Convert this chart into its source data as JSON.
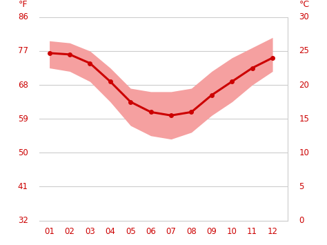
{
  "months": [
    1,
    2,
    3,
    4,
    5,
    6,
    7,
    8,
    9,
    10,
    11,
    12
  ],
  "month_labels": [
    "01",
    "02",
    "03",
    "04",
    "05",
    "06",
    "07",
    "08",
    "09",
    "10",
    "11",
    "12"
  ],
  "avg_temp": [
    24.7,
    24.5,
    23.2,
    20.5,
    17.5,
    16.0,
    15.5,
    16.0,
    18.5,
    20.5,
    22.5,
    24.0
  ],
  "temp_max": [
    26.5,
    26.2,
    25.0,
    22.5,
    19.5,
    19.0,
    19.0,
    19.5,
    22.0,
    24.0,
    25.5,
    27.0
  ],
  "temp_min": [
    22.5,
    22.0,
    20.5,
    17.5,
    14.0,
    12.5,
    12.0,
    13.0,
    15.5,
    17.5,
    20.0,
    22.0
  ],
  "line_color": "#cc0000",
  "band_color": "#f5a0a0",
  "axis_color": "#cc0000",
  "grid_color": "#cccccc",
  "bg_color": "#ffffff",
  "ylim_c": [
    0,
    30
  ],
  "yticks_c": [
    0,
    5,
    10,
    15,
    20,
    25,
    30
  ],
  "yticks_f": [
    32,
    41,
    50,
    59,
    68,
    77,
    86
  ],
  "ylabel_left": "°F",
  "ylabel_right": "°C",
  "label_fontsize": 9,
  "tick_fontsize": 8.5,
  "xlim": [
    0.5,
    12.75
  ]
}
